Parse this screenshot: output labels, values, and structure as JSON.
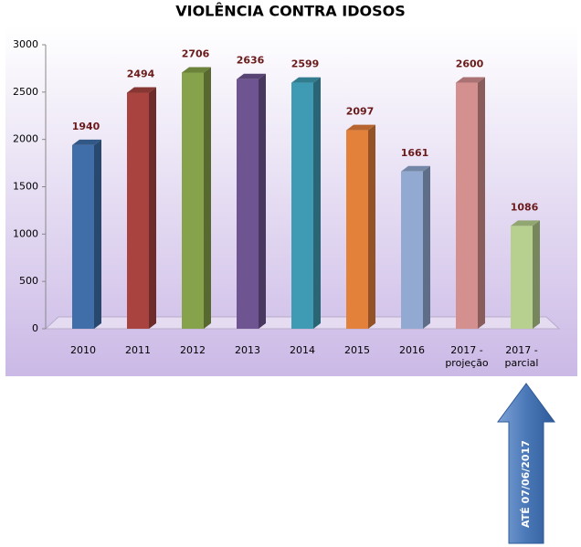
{
  "chart_data": {
    "type": "bar",
    "title": "VIOLÊNCIA CONTRA IDOSOS",
    "categories": [
      "2010",
      "2011",
      "2012",
      "2013",
      "2014",
      "2015",
      "2016",
      "2017 - projeção",
      "2017 - parcial"
    ],
    "values": [
      1940,
      2494,
      2706,
      2636,
      2599,
      2097,
      1661,
      2600,
      1086
    ],
    "colors": [
      "#3f6ea9",
      "#a84340",
      "#86a24a",
      "#6e5591",
      "#3f9bb3",
      "#e3803a",
      "#92a9d1",
      "#d48f8f",
      "#b7d08f"
    ],
    "ylim": [
      0,
      3000
    ],
    "yticks": [
      0,
      500,
      1000,
      1500,
      2000,
      2500,
      3000
    ],
    "grid": false,
    "annotation": "ATÉ 07/06/2017"
  }
}
